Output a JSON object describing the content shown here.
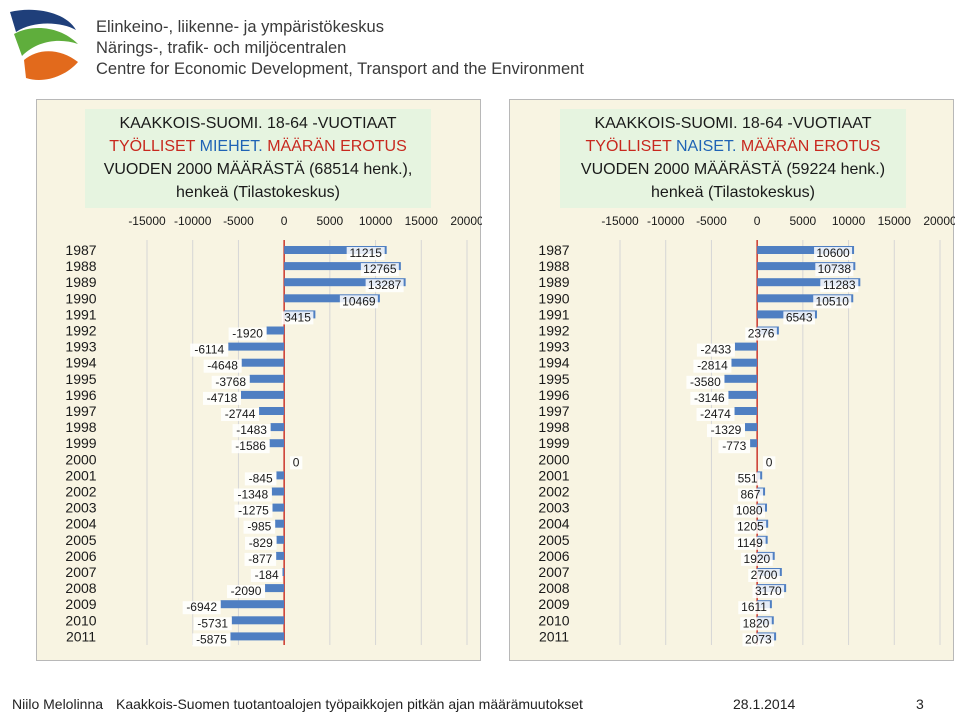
{
  "header": {
    "org_lines": [
      "Elinkeino-, liikenne- ja ympäristökeskus",
      "Närings-, trafik- och miljöcentralen",
      "Centre for Economic Development, Transport and the Environment"
    ],
    "logo_colors": {
      "navy": "#1f3f7a",
      "green": "#5fae3c",
      "orange": "#e26a1c"
    }
  },
  "footer": {
    "author": "Niilo Melolinna",
    "subject": "Kaakkois-Suomen tuotantoalojen työpaikkojen pitkän ajan määrämuutokset",
    "date": "28.1.2014",
    "page": "3"
  },
  "colors": {
    "bar": "#4f7fc2",
    "axis_zero": "#c8281e",
    "grid": "#d6d6d6",
    "panel_bg": "#f8f4e2",
    "title_bg": "#e6f4e0"
  },
  "chart_data": [
    {
      "type": "bar",
      "orientation": "horizontal",
      "title": {
        "line1": "KAAKKOIS-SUOMI. 18-64 -VUOTIAAT",
        "line2a": "TYÖLLISET",
        "line2b": "MIEHET.",
        "line2c": "MÄÄRÄN EROTUS",
        "line3": "VUODEN 2000 MÄÄRÄSTÄ (68514 henk.),",
        "line4": "henkeä (Tilastokeskus)"
      },
      "categories": [
        "1987",
        "1988",
        "1989",
        "1990",
        "1991",
        "1992",
        "1993",
        "1994",
        "1995",
        "1996",
        "1997",
        "1998",
        "1999",
        "2000",
        "2001",
        "2002",
        "2003",
        "2004",
        "2005",
        "2006",
        "2007",
        "2008",
        "2009",
        "2010",
        "2011"
      ],
      "values": [
        11215,
        12765,
        13287,
        10469,
        3415,
        -1920,
        -6114,
        -4648,
        -3768,
        -4718,
        -2744,
        -1483,
        -1586,
        0,
        -845,
        -1348,
        -1275,
        -985,
        -829,
        -877,
        -184,
        -2090,
        -6942,
        -5731,
        -5875
      ],
      "xlim": [
        -15000,
        20000
      ],
      "ticks": [
        "-15000",
        "-10000",
        "-5000",
        "0",
        "5000",
        "10000",
        "15000",
        "20000"
      ],
      "grid": true,
      "axis_position": "top",
      "legend": "none"
    },
    {
      "type": "bar",
      "orientation": "horizontal",
      "title": {
        "line1": "KAAKKOIS-SUOMI. 18-64 -VUOTIAAT",
        "line2a": "TYÖLLISET",
        "line2b": "NAISET.",
        "line2c": "MÄÄRÄN EROTUS",
        "line3": "VUODEN 2000 MÄÄRÄSTÄ (59224 henk.)",
        "line4": "henkeä (Tilastokeskus)"
      },
      "categories": [
        "1987",
        "1988",
        "1989",
        "1990",
        "1991",
        "1992",
        "1993",
        "1994",
        "1995",
        "1996",
        "1997",
        "1998",
        "1999",
        "2000",
        "2001",
        "2002",
        "2003",
        "2004",
        "2005",
        "2006",
        "2007",
        "2008",
        "2009",
        "2010",
        "2011"
      ],
      "values": [
        10600,
        10738,
        11283,
        10510,
        6543,
        2376,
        -2433,
        -2814,
        -3580,
        -3146,
        -2474,
        -1329,
        -773,
        0,
        551,
        867,
        1080,
        1205,
        1149,
        1920,
        2700,
        3170,
        1611,
        1820,
        2073
      ],
      "xlim": [
        -15000,
        20000
      ],
      "ticks": [
        "-15000",
        "-10000",
        "-5000",
        "0",
        "5000",
        "10000",
        "15000",
        "20000"
      ],
      "grid": true,
      "axis_position": "top",
      "legend": "none"
    }
  ]
}
